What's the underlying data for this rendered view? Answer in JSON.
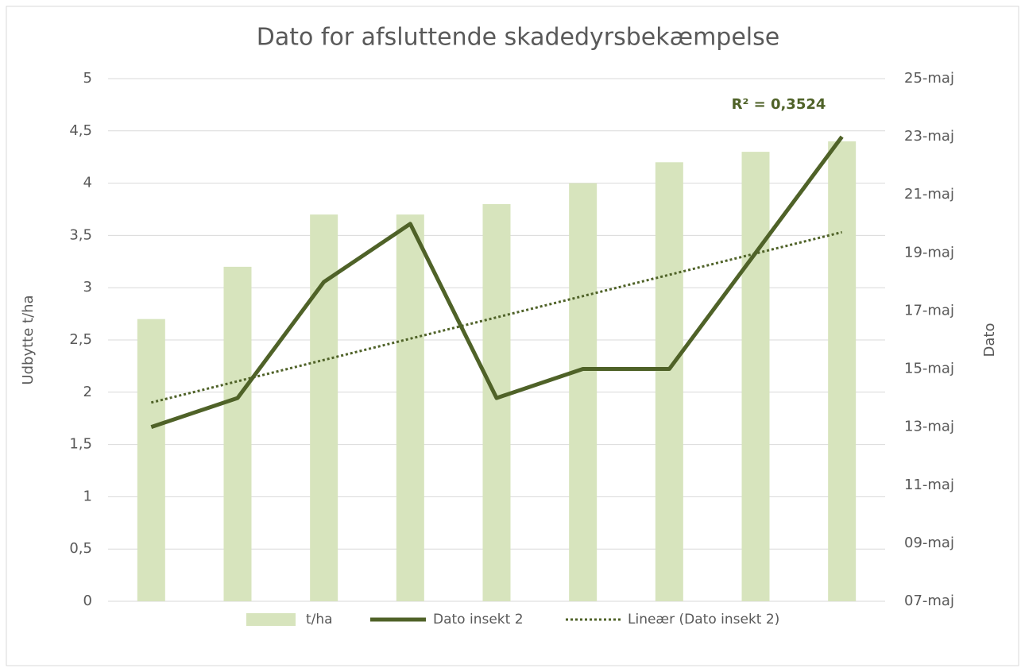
{
  "chart_data": {
    "type": "bar-line",
    "title": "Dato for afsluttende skadedyrsbekæmpelse",
    "y_label": "Udbytte t/ha",
    "y2_label": "Dato",
    "categories": [
      null,
      null,
      null,
      null,
      null,
      null,
      null,
      null,
      null
    ],
    "series": [
      {
        "name": "t/ha",
        "type": "bar",
        "color": "#d7e4bd",
        "values": [
          2.7,
          3.2,
          3.7,
          3.7,
          3.8,
          4,
          4.2,
          4.3,
          4.4
        ]
      },
      {
        "name": "Dato insekt 2",
        "type": "line",
        "axis": "y2",
        "color": "#4f6228",
        "values": [
          13,
          14,
          18,
          20,
          14,
          15,
          15,
          19,
          23
        ]
      }
    ],
    "trendline": {
      "name": "Lineær (Dato insekt 2)",
      "of_series": 1,
      "kind": "linear",
      "style": "dotted",
      "color": "#4f6228",
      "annotation": "R² = 0,3524"
    },
    "ylim": [
      0,
      5
    ],
    "yticks": [
      0,
      {
        "value": 0.5,
        "label": "0,5"
      },
      1,
      {
        "value": 1.5,
        "label": "1,5"
      },
      2,
      {
        "value": 2.5,
        "label": "2,5"
      },
      3,
      {
        "value": 3.5,
        "label": "3,5"
      },
      4,
      {
        "value": 4.5,
        "label": "4,5"
      },
      5
    ],
    "y2lim": [
      7,
      25
    ],
    "y2ticks": [
      {
        "value": 7,
        "label": "07-maj"
      },
      {
        "value": 9,
        "label": "09-maj"
      },
      {
        "value": 11,
        "label": "11-maj"
      },
      {
        "value": 13,
        "label": "13-maj"
      },
      {
        "value": 15,
        "label": "15-maj"
      },
      {
        "value": 17,
        "label": "17-maj"
      },
      {
        "value": 19,
        "label": "19-maj"
      },
      {
        "value": 21,
        "label": "21-maj"
      },
      {
        "value": 23,
        "label": "23-maj"
      },
      {
        "value": 25,
        "label": "25-maj"
      }
    ],
    "grid": true,
    "legend": "bottom"
  }
}
